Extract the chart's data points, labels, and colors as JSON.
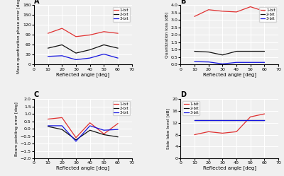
{
  "x": [
    10,
    20,
    30,
    40,
    50,
    60
  ],
  "panel_A": {
    "label": "A",
    "ylabel": "Mean quantization phase error [deg]",
    "xlabel": "Reflected angle [deg]",
    "ylim": [
      0,
      180
    ],
    "yticks": [
      0,
      30,
      60,
      90,
      120,
      150,
      180
    ],
    "xlim": [
      0,
      70
    ],
    "xticks": [
      0,
      10,
      20,
      30,
      40,
      50,
      60,
      70
    ],
    "1bit": [
      95,
      110,
      85,
      90,
      100,
      95
    ],
    "2bit": [
      50,
      60,
      35,
      45,
      60,
      50
    ],
    "3bit": [
      25,
      27,
      15,
      20,
      32,
      20
    ]
  },
  "panel_B": {
    "label": "B",
    "ylabel": "Quantization loss [dB]",
    "xlabel": "Reflected angle [deg]",
    "ylim": [
      0,
      4
    ],
    "yticks": [
      0,
      0.5,
      1.0,
      1.5,
      2.0,
      2.5,
      3.0,
      3.5,
      4.0
    ],
    "xlim": [
      0,
      70
    ],
    "xticks": [
      0,
      10,
      20,
      30,
      40,
      50,
      60,
      70
    ],
    "1bit": [
      3.25,
      3.7,
      3.6,
      3.55,
      3.9,
      3.6
    ],
    "2bit": [
      0.9,
      0.85,
      0.65,
      0.9,
      0.9,
      0.9
    ],
    "3bit": [
      0.2,
      0.18,
      0.05,
      0.15,
      0.15,
      0.15
    ]
  },
  "panel_C": {
    "label": "C",
    "ylabel": "Beam pointing error [deg]",
    "xlabel": "Reflected angle [deg]",
    "ylim": [
      -2.0,
      2.0
    ],
    "yticks": [
      -2.0,
      -1.5,
      -1.0,
      -0.5,
      0.0,
      0.5,
      1.0,
      1.5,
      2.0
    ],
    "xlim": [
      0,
      70
    ],
    "xticks": [
      0,
      10,
      20,
      30,
      40,
      50,
      60,
      70
    ],
    "1bit": [
      0.65,
      0.75,
      -0.6,
      0.4,
      -0.35,
      0.35
    ],
    "2bit": [
      0.15,
      -0.05,
      -0.75,
      -0.1,
      -0.4,
      -0.55
    ],
    "3bit": [
      0.2,
      0.2,
      -0.85,
      0.2,
      -0.1,
      -0.05
    ]
  },
  "panel_D": {
    "label": "D",
    "ylabel": "Side lobe level [dB]",
    "xlabel": "Reflected angle [deg]",
    "ylim": [
      0,
      20
    ],
    "yticks": [
      0,
      4,
      8,
      12,
      16,
      20
    ],
    "xlim": [
      0,
      70
    ],
    "xticks": [
      0,
      10,
      20,
      30,
      40,
      50,
      60,
      70
    ],
    "1bit": [
      8,
      9,
      8.5,
      9,
      14,
      15
    ],
    "2bit": [
      13,
      13,
      13,
      13,
      13,
      13
    ],
    "3bit": [
      13,
      13,
      13,
      13,
      13,
      13
    ]
  },
  "colors": {
    "1bit": "#e03030",
    "2bit": "#111111",
    "3bit": "#1414e0"
  },
  "legend_labels": [
    "1-bit",
    "2-bit",
    "3-bit"
  ],
  "background_color": "#f0f0f0",
  "grid_color": "white"
}
